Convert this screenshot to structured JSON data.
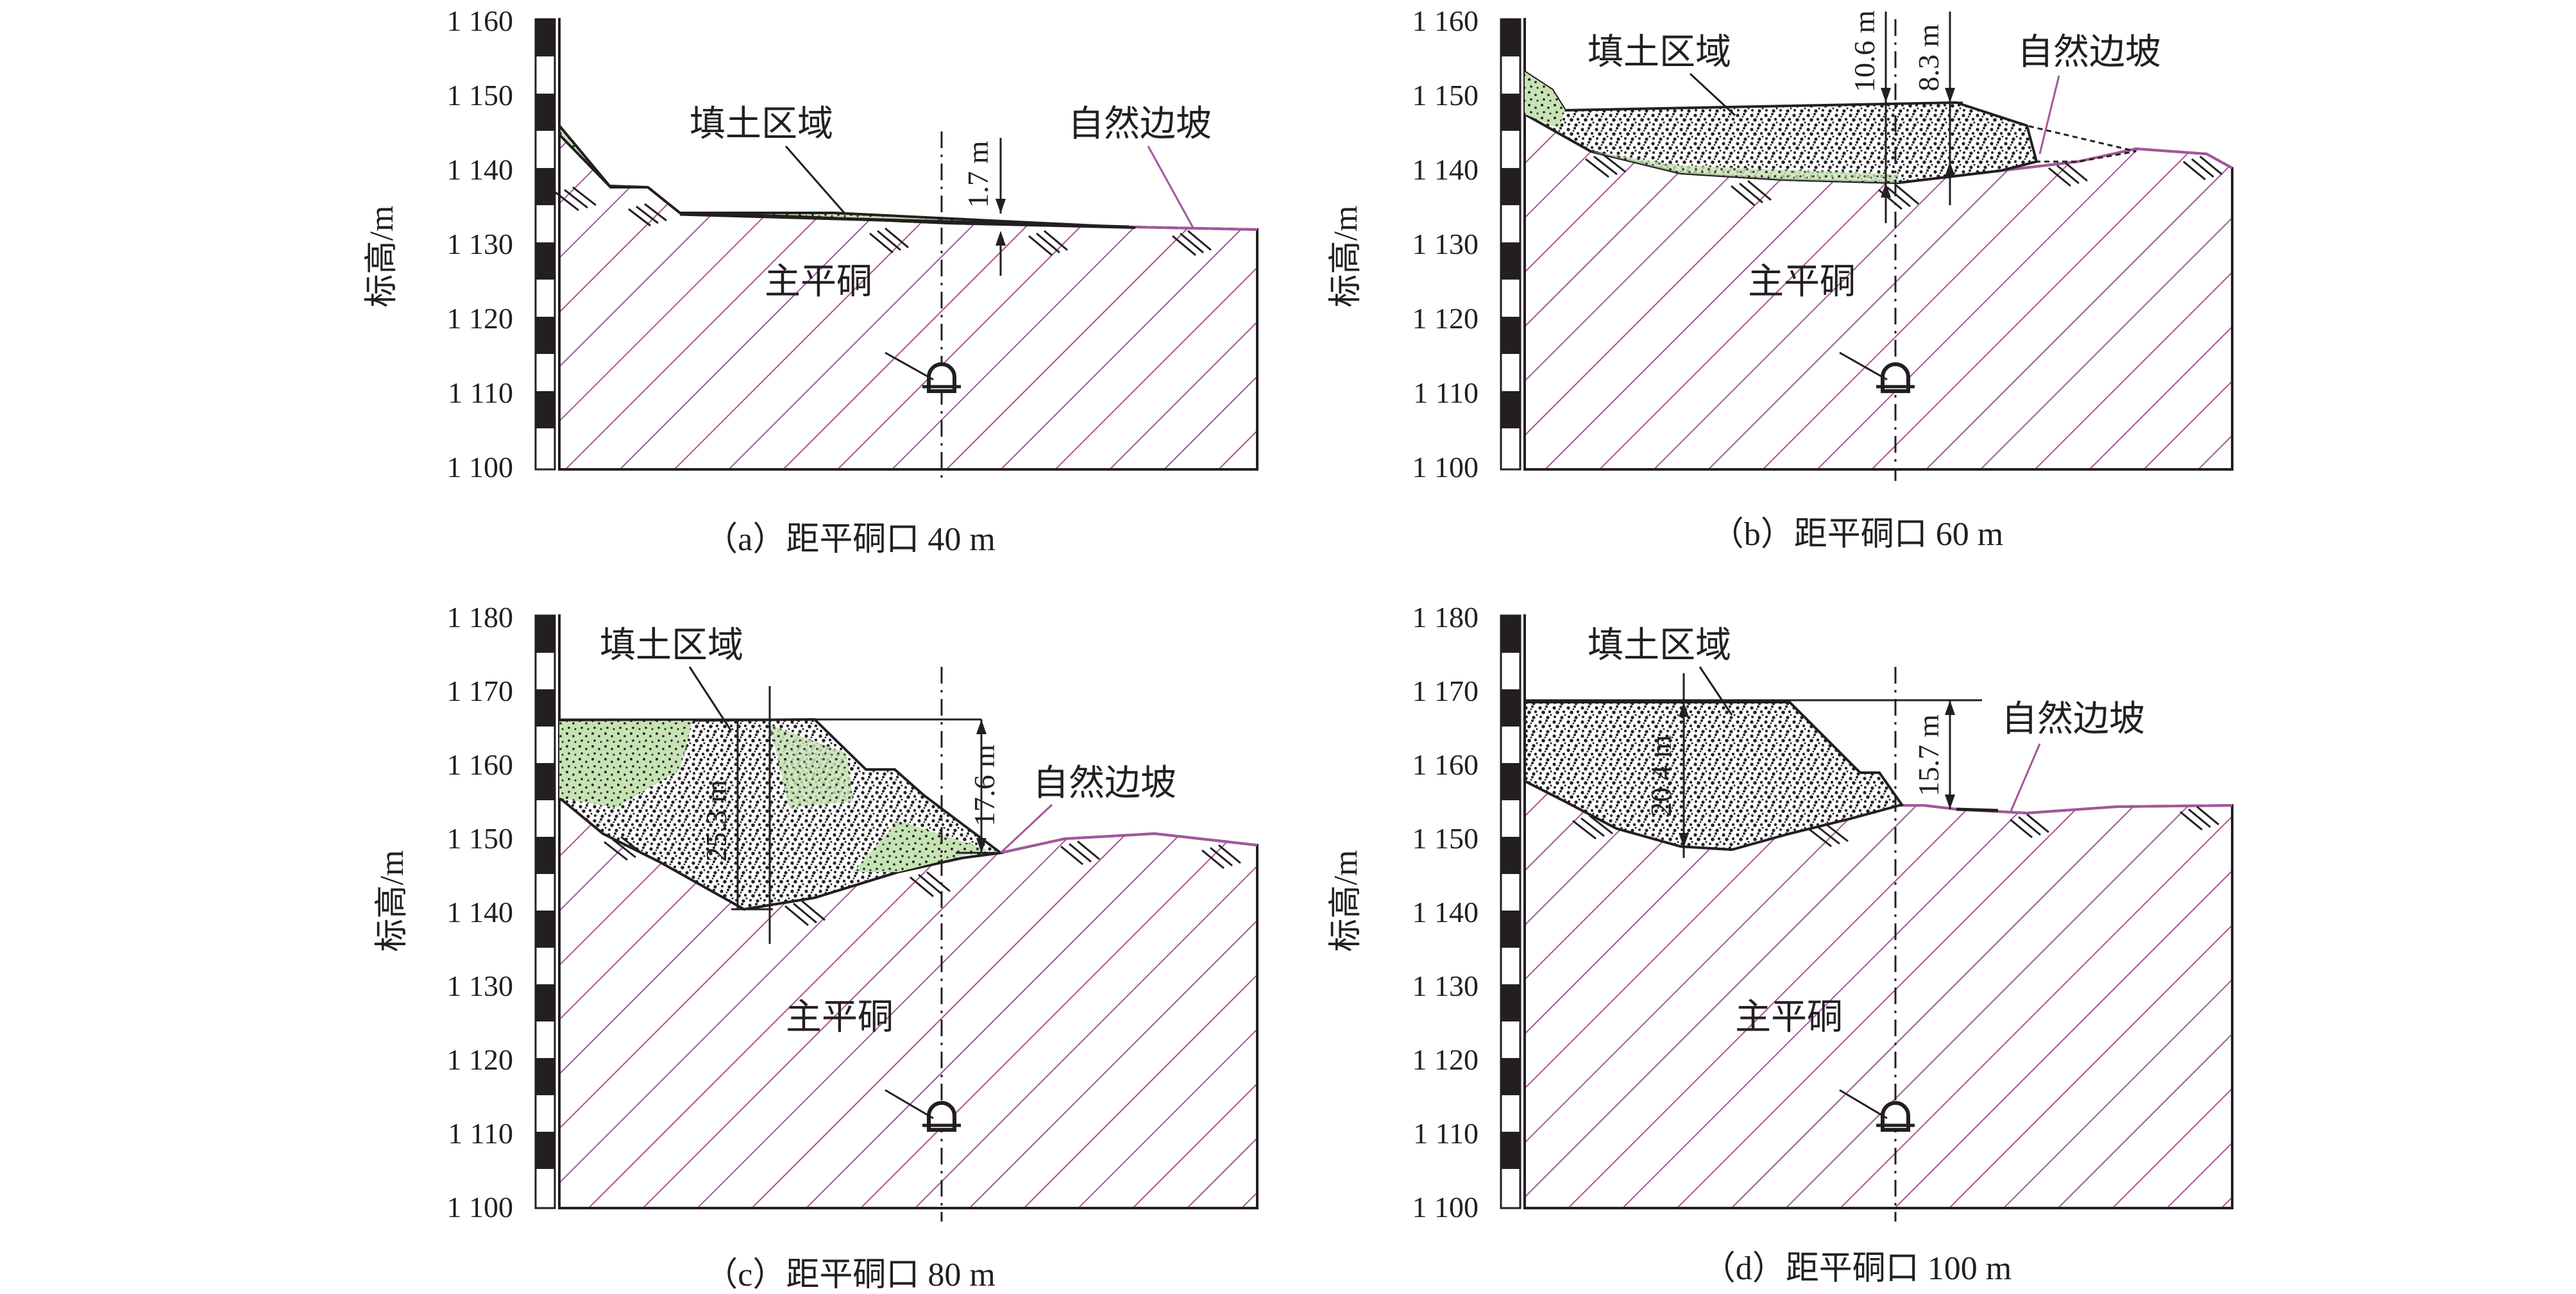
{
  "colors": {
    "hatch": "#a4579c",
    "ground_line": "#a4579c",
    "fill_dots": "#231f20",
    "fill_green": "#c6e3b4",
    "line": "#231f20"
  },
  "panels": [
    {
      "caption": "（a）距平硐口 40 m",
      "ylabel": "标高/m",
      "yticks": [
        "1 100",
        "1 110",
        "1 120",
        "1 130",
        "1 140",
        "1 150",
        "1 160"
      ],
      "labels": {
        "fill": "填土区域",
        "slope": "自然边坡",
        "adit": "主平硐"
      },
      "dims": [
        "1.7 m"
      ]
    },
    {
      "caption": "（b）距平硐口 60 m",
      "ylabel": "标高/m",
      "yticks": [
        "1 100",
        "1 110",
        "1 120",
        "1 130",
        "1 140",
        "1 150",
        "1 160"
      ],
      "labels": {
        "fill": "填土区域",
        "slope": "自然边坡",
        "adit": "主平硐"
      },
      "dims": [
        "10.6 m",
        "8.3 m"
      ]
    },
    {
      "caption": "（c）距平硐口 80 m",
      "ylabel": "标高/m",
      "yticks": [
        "1 100",
        "1 110",
        "1 120",
        "1 130",
        "1 140",
        "1 150",
        "1 160",
        "1 170",
        "1 180"
      ],
      "labels": {
        "fill": "填土区域",
        "slope": "自然边坡",
        "adit": "主平硐"
      },
      "dims": [
        "25.3 m",
        "17.6 m"
      ]
    },
    {
      "caption": "（d）距平硐口 100 m",
      "ylabel": "标高/m",
      "yticks": [
        "1 100",
        "1 110",
        "1 120",
        "1 130",
        "1 140",
        "1 150",
        "1 160",
        "1 170",
        "1 180"
      ],
      "labels": {
        "fill": "填土区域",
        "slope": "自然边坡",
        "adit": "主平硐"
      },
      "dims": [
        "20.4 m",
        "15.7 m"
      ]
    }
  ]
}
